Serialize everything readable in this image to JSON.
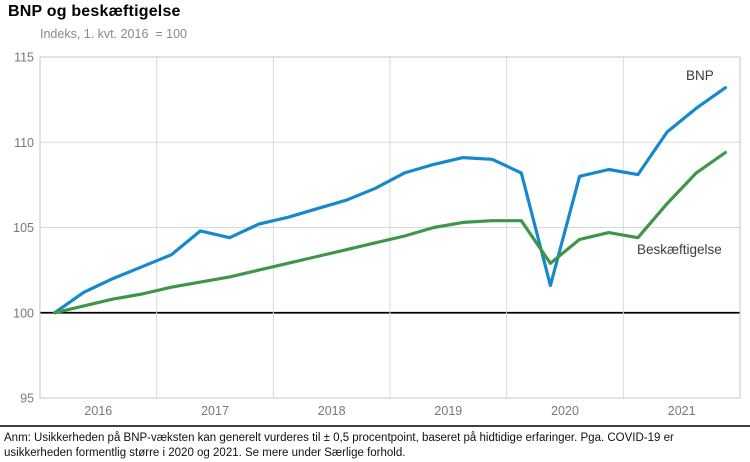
{
  "header": {
    "title": "BNP og beskæftigelse",
    "subtitle": "Indeks, 1. kvt. 2016  = 100"
  },
  "chart_data": {
    "type": "line",
    "title": "BNP og beskæftigelse",
    "subtitle": "Indeks, 1. kvt. 2016  = 100",
    "x_unit": "quarter",
    "years": [
      "2016",
      "2017",
      "2018",
      "2019",
      "2020",
      "2021"
    ],
    "quarters_per_year": 4,
    "y_ticks": [
      115,
      110,
      105,
      100,
      95
    ],
    "ylim": [
      95,
      115
    ],
    "baseline_value": 100,
    "grid": true,
    "legend_position": "inline-labels",
    "series": [
      {
        "name": "BNP",
        "color": "#1688cc",
        "values": [
          100.0,
          101.2,
          102.0,
          102.7,
          103.4,
          104.8,
          104.4,
          105.2,
          105.6,
          106.1,
          106.6,
          107.3,
          108.2,
          108.7,
          109.1,
          109.0,
          108.2,
          101.6,
          108.0,
          108.4,
          108.1,
          110.6,
          112.0,
          113.2
        ]
      },
      {
        "name": "Beskæftigelse",
        "color": "#3f9649",
        "values": [
          100.0,
          100.4,
          100.8,
          101.1,
          101.5,
          101.8,
          102.1,
          102.5,
          102.9,
          103.3,
          103.7,
          104.1,
          104.5,
          105.0,
          105.3,
          105.4,
          105.4,
          102.9,
          104.3,
          104.7,
          104.4,
          106.4,
          108.2,
          109.4
        ]
      }
    ]
  },
  "colors": {
    "grid": "#dadad4",
    "frame": "#c6c6c0",
    "baseline": "#000000",
    "tick_label": "#7a7a6c",
    "series_label": "#3d3d3d"
  },
  "footnote": {
    "line1": "Anm: Usikkerheden på BNP-væksten kan generelt vurderes til ± 0,5 procentpoint, baseret på hidtidige erfaringer. Pga. COVID-19 er",
    "line2": "usikkerheden formentlig større i 2020 og 2021. Se mere under Særlige forhold."
  }
}
